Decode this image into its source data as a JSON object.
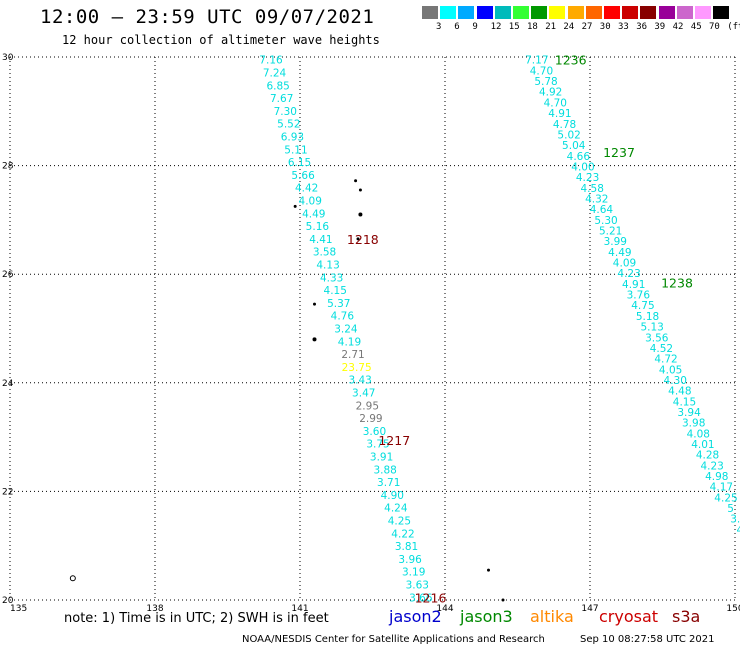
{
  "header": {
    "title": "12:00 — 23:59 UTC 09/07/2021",
    "subtitle": "12 hour collection of altimeter wave heights"
  },
  "color_scale": {
    "colors": [
      "#777777",
      "#00ffff",
      "#00aaff",
      "#0000ff",
      "#00bbbb",
      "#33ff33",
      "#009900",
      "#ffff00",
      "#ffaa00",
      "#ff6600",
      "#ff0000",
      "#cc0000",
      "#880000",
      "#990099",
      "#cc66cc",
      "#ff99ff",
      "#000000"
    ],
    "labels": [
      "3",
      "6",
      "9",
      "12",
      "15",
      "18",
      "21",
      "24",
      "27",
      "30",
      "33",
      "36",
      "39",
      "42",
      "45",
      "70",
      "(ft)"
    ]
  },
  "chart_data": {
    "type": "scatter",
    "xlim": [
      135,
      150
    ],
    "ylim": [
      20,
      30
    ],
    "x_ticks": [
      "135",
      "138",
      "141",
      "144",
      "147",
      "150"
    ],
    "y_ticks": [
      "20",
      "22",
      "24",
      "26",
      "28",
      "30"
    ],
    "grid": true,
    "track_west": {
      "labels": [
        "7.16",
        "7.24",
        "6.85",
        "7.67",
        "7.30",
        "5.52",
        "6.93",
        "5.11",
        "6.15",
        "5.66",
        "4.42",
        "4.09",
        "4.49",
        "5.16",
        "4.41",
        "3.58",
        "4.13",
        "4.33",
        "4.15",
        "5.37",
        "4.76",
        "3.24",
        "4.19",
        "2.71",
        "23.75",
        "3.43",
        "3.47",
        "2.95",
        "2.99",
        "3.60",
        "3.75",
        "3.91",
        "3.88",
        "3.71",
        "4.90",
        "4.24",
        "4.25",
        "4.22",
        "3.81",
        "3.96",
        "3.19",
        "3.63",
        "3.66"
      ],
      "colors": {
        "2.71": "#777777",
        "23.75": "#ffff00",
        "2.95": "#777777",
        "2.99": "#777777"
      },
      "lon": [
        140.4,
        143.5
      ],
      "lat": [
        29.95,
        20.05
      ]
    },
    "track_east": {
      "labels": [
        "7.17",
        "4.70",
        "5.78",
        "4.92",
        "4.70",
        "4.91",
        "4.78",
        "5.02",
        "5.04",
        "4.66",
        "4.00",
        "4.23",
        "4.58",
        "4.32",
        "4.64",
        "5.30",
        "5.21",
        "3.99",
        "4.49",
        "4.09",
        "4.23",
        "4.91",
        "3.76",
        "4.75",
        "5.18",
        "5.13",
        "3.56",
        "4.52",
        "4.72",
        "4.05",
        "4.30",
        "4.48",
        "4.15",
        "3.94",
        "3.98",
        "4.08",
        "4.01",
        "4.28",
        "4.23",
        "4.98",
        "4.17",
        "4.25",
        "5",
        "3.",
        "4"
      ],
      "lon": [
        145.9,
        150.1
      ],
      "lat": [
        29.95,
        21.3
      ]
    },
    "time_labels": [
      {
        "text": "1236",
        "lon": 146.6,
        "lat": 29.95,
        "color": "#008800"
      },
      {
        "text": "1237",
        "lon": 147.6,
        "lat": 28.25,
        "color": "#008800"
      },
      {
        "text": "1238",
        "lon": 148.8,
        "lat": 25.85,
        "color": "#008800"
      },
      {
        "text": "1218",
        "lon": 142.3,
        "lat": 26.65,
        "color": "#880000"
      },
      {
        "text": "1217",
        "lon": 142.95,
        "lat": 22.95,
        "color": "#880000"
      },
      {
        "text": "1216",
        "lon": 143.7,
        "lat": 20.05,
        "color": "#880000"
      }
    ],
    "land": [
      {
        "lon": 142.15,
        "lat": 27.72,
        "r": 1
      },
      {
        "lon": 142.25,
        "lat": 27.55,
        "r": 1
      },
      {
        "lon": 142.25,
        "lat": 27.1,
        "r": 1.5
      },
      {
        "lon": 142.2,
        "lat": 26.65,
        "r": 1
      },
      {
        "lon": 140.9,
        "lat": 27.25,
        "r": 1
      },
      {
        "lon": 141.3,
        "lat": 25.45,
        "r": 1
      },
      {
        "lon": 141.3,
        "lat": 24.8,
        "r": 1.5
      },
      {
        "lon": 136.3,
        "lat": 20.4,
        "r": 2.5,
        "hollow": true
      },
      {
        "lon": 144.9,
        "lat": 20.55,
        "r": 1
      },
      {
        "lon": 145.2,
        "lat": 20.0,
        "r": 1
      }
    ]
  },
  "footer": {
    "note": "note:  1) Time is in UTC;  2) SWH is in feet",
    "legend": [
      {
        "name": "jason2",
        "color": "#0000cc"
      },
      {
        "name": "jason3",
        "color": "#008800"
      },
      {
        "name": "altika",
        "color": "#ff8800"
      },
      {
        "name": "cryosat",
        "color": "#cc0000"
      },
      {
        "name": "s3a",
        "color": "#880000"
      }
    ],
    "credit": "NOAA/NESDIS Center for Satellite Applications and Research",
    "timestamp": "Sep 10 08:27:58 UTC 2021"
  }
}
